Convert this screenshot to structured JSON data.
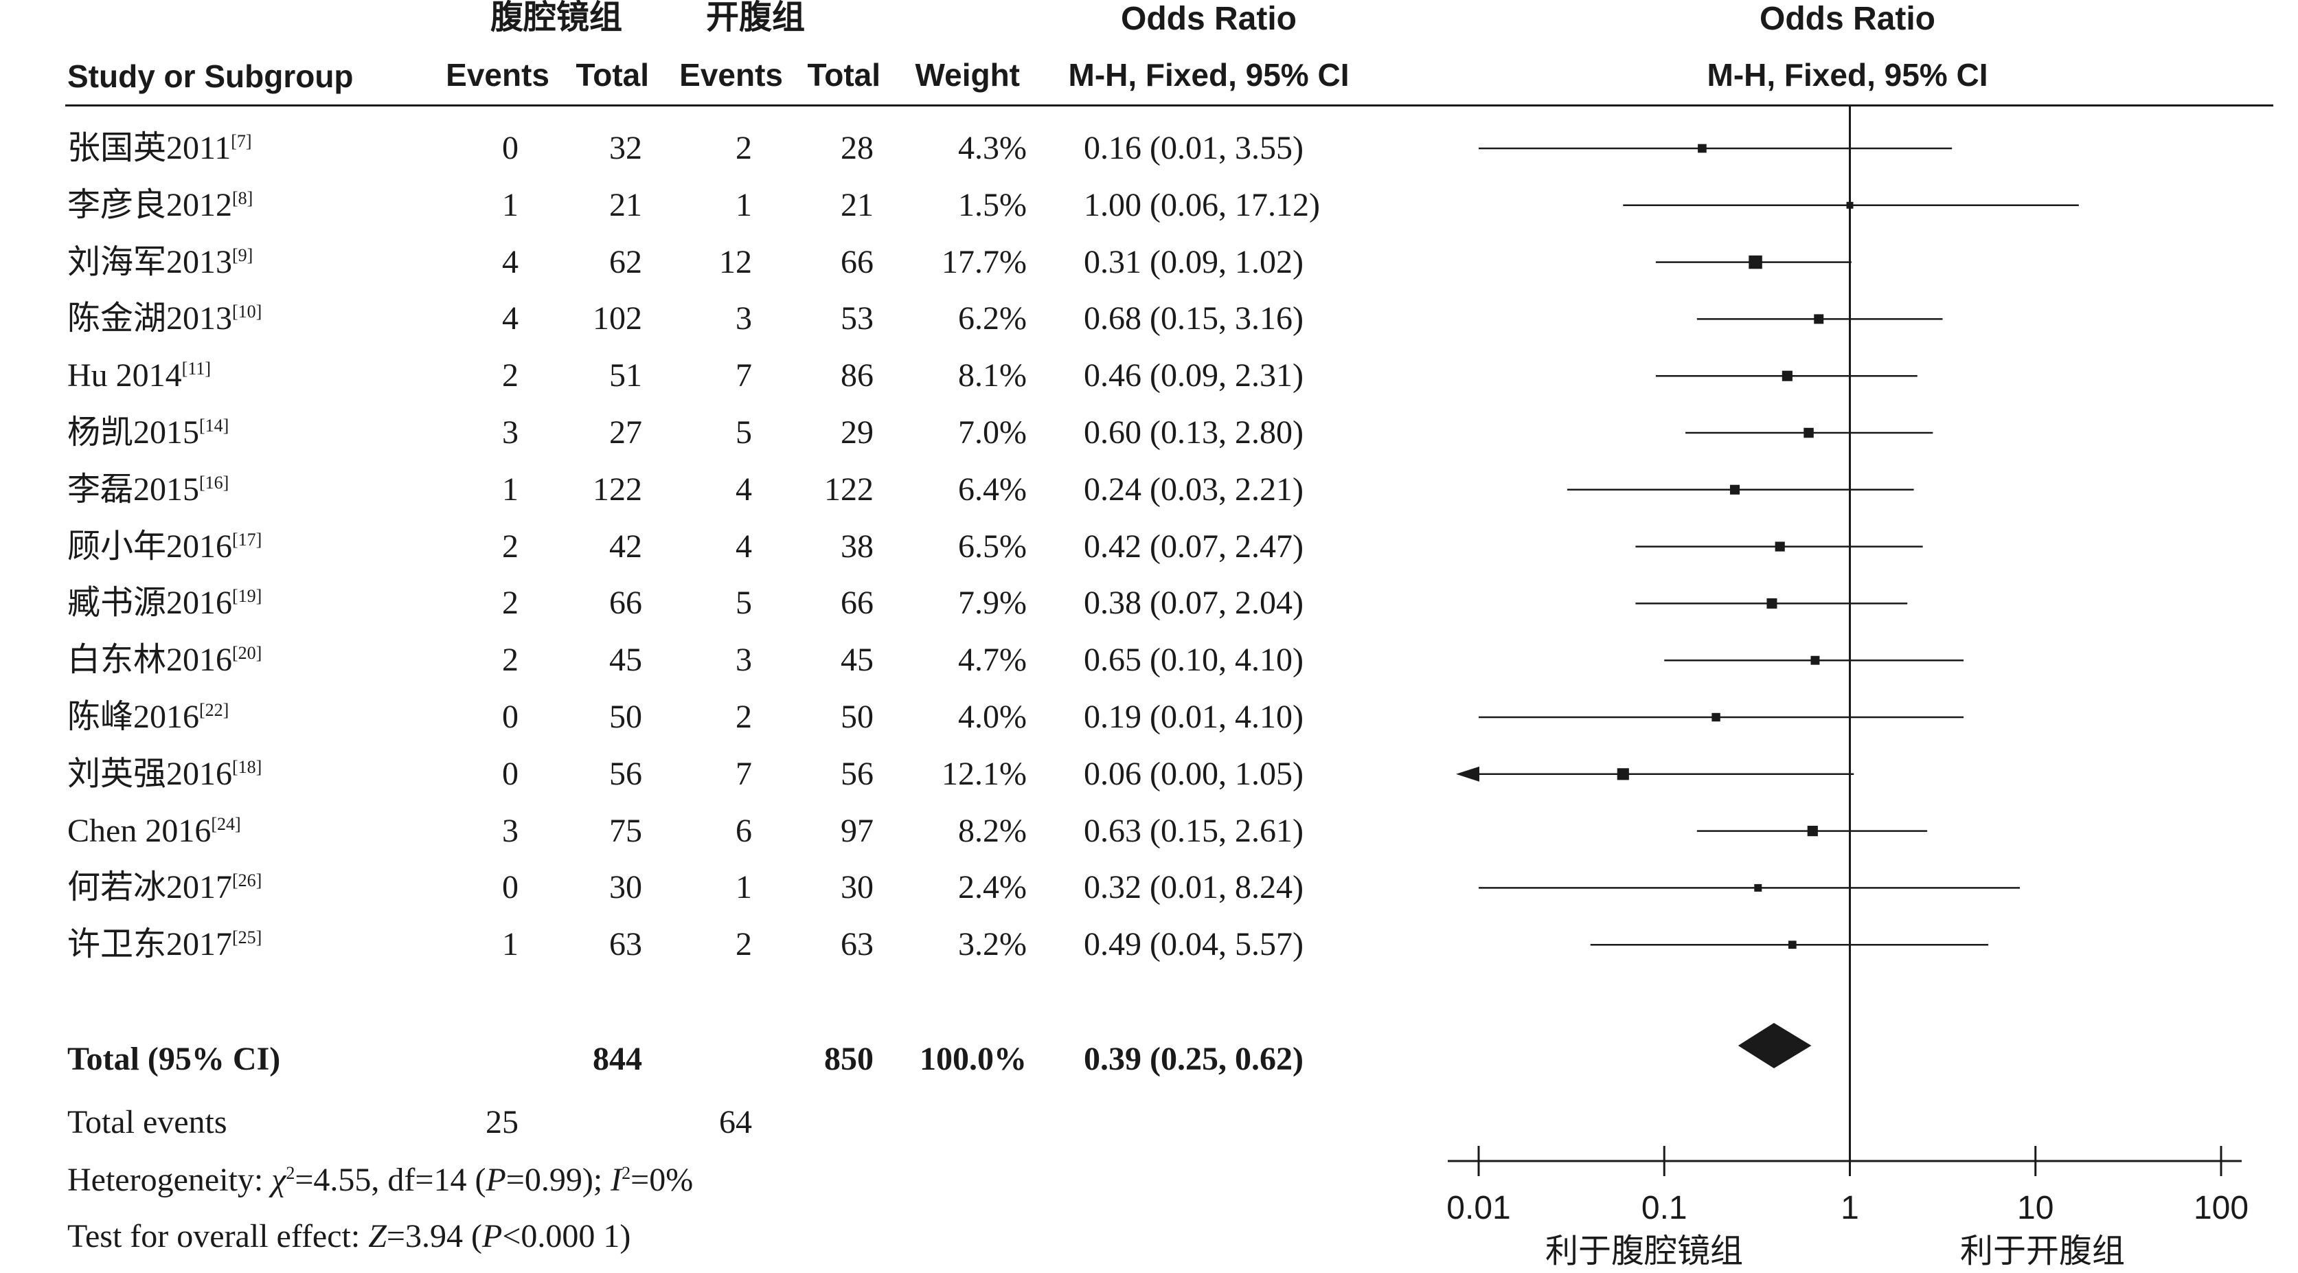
{
  "header": {
    "group_lap": "腹腔镜组",
    "group_open": "开腹组",
    "study_col": "Study or Subgroup",
    "events_lap": "Events",
    "total_lap": "Total",
    "events_open": "Events",
    "total_open": "Total",
    "weight": "Weight",
    "or_title_table": "Odds Ratio",
    "or_method_table": "M-H, Fixed, 95% CI",
    "or_title_plot": "Odds Ratio",
    "or_method_plot": "M-H, Fixed, 95% CI"
  },
  "studies": [
    {
      "name": "张国英2011",
      "ref": "[7]",
      "ev1": "0",
      "tot1": "32",
      "ev2": "2",
      "tot2": "28",
      "weight": "4.3%",
      "ci": "0.16 (0.01, 3.55)"
    },
    {
      "name": "李彦良2012",
      "ref": "[8]",
      "ev1": "1",
      "tot1": "21",
      "ev2": "1",
      "tot2": "21",
      "weight": "1.5%",
      "ci": "1.00 (0.06, 17.12)"
    },
    {
      "name": "刘海军2013",
      "ref": "[9]",
      "ev1": "4",
      "tot1": "62",
      "ev2": "12",
      "tot2": "66",
      "weight": "17.7%",
      "ci": "0.31 (0.09, 1.02)"
    },
    {
      "name": "陈金湖2013",
      "ref": "[10]",
      "ev1": "4",
      "tot1": "102",
      "ev2": "3",
      "tot2": "53",
      "weight": "6.2%",
      "ci": "0.68 (0.15, 3.16)"
    },
    {
      "name": "Hu 2014",
      "ref": "[11]",
      "ev1": "2",
      "tot1": "51",
      "ev2": "7",
      "tot2": "86",
      "weight": "8.1%",
      "ci": "0.46 (0.09, 2.31)"
    },
    {
      "name": "杨凯2015",
      "ref": "[14]",
      "ev1": "3",
      "tot1": "27",
      "ev2": "5",
      "tot2": "29",
      "weight": "7.0%",
      "ci": "0.60 (0.13, 2.80)"
    },
    {
      "name": "李磊2015",
      "ref": "[16]",
      "ev1": "1",
      "tot1": "122",
      "ev2": "4",
      "tot2": "122",
      "weight": "6.4%",
      "ci": "0.24 (0.03, 2.21)"
    },
    {
      "name": "顾小年2016",
      "ref": "[17]",
      "ev1": "2",
      "tot1": "42",
      "ev2": "4",
      "tot2": "38",
      "weight": "6.5%",
      "ci": "0.42 (0.07, 2.47)"
    },
    {
      "name": "臧书源2016",
      "ref": "[19]",
      "ev1": "2",
      "tot1": "66",
      "ev2": "5",
      "tot2": "66",
      "weight": "7.9%",
      "ci": "0.38 (0.07, 2.04)"
    },
    {
      "name": "白东林2016",
      "ref": "[20]",
      "ev1": "2",
      "tot1": "45",
      "ev2": "3",
      "tot2": "45",
      "weight": "4.7%",
      "ci": "0.65 (0.10, 4.10)"
    },
    {
      "name": "陈峰2016",
      "ref": "[22]",
      "ev1": "0",
      "tot1": "50",
      "ev2": "2",
      "tot2": "50",
      "weight": "4.0%",
      "ci": "0.19 (0.01, 4.10)"
    },
    {
      "name": "刘英强2016",
      "ref": "[18]",
      "ev1": "0",
      "tot1": "56",
      "ev2": "7",
      "tot2": "56",
      "weight": "12.1%",
      "ci": "0.06 (0.00, 1.05)"
    },
    {
      "name": "Chen 2016",
      "ref": "[24]",
      "ev1": "3",
      "tot1": "75",
      "ev2": "6",
      "tot2": "97",
      "weight": "8.2%",
      "ci": "0.63 (0.15, 2.61)"
    },
    {
      "name": "何若冰2017",
      "ref": "[26]",
      "ev1": "0",
      "tot1": "30",
      "ev2": "1",
      "tot2": "30",
      "weight": "2.4%",
      "ci": "0.32 (0.01, 8.24)"
    },
    {
      "name": "许卫东2017",
      "ref": "[25]",
      "ev1": "1",
      "tot1": "63",
      "ev2": "2",
      "tot2": "63",
      "weight": "3.2%",
      "ci": "0.49 (0.04, 5.57)"
    }
  ],
  "total": {
    "label": "Total (95% CI)",
    "tot1": "844",
    "tot2": "850",
    "weight": "100.0%",
    "ci": "0.39 (0.25, 0.62)"
  },
  "total_events": {
    "label": "Total events",
    "ev1": "25",
    "ev2": "64"
  },
  "heterogeneity": {
    "prefix": "Heterogeneity: ",
    "chi": "χ",
    "chi_sup": "2",
    "chi_value": "=4.55, df=14 (",
    "p": "P",
    "p_value": "=0.99); ",
    "i": "I",
    "i_sup": "2",
    "i_value": "=0%"
  },
  "overall_effect": {
    "prefix": "Test for overall effect: ",
    "z": "Z",
    "z_value": "=3.94 (",
    "p": "P",
    "p_value": "<0.000 1)"
  },
  "axis": {
    "ticks": [
      "0.01",
      "0.1",
      "1",
      "10",
      "100"
    ],
    "favours_left": "利于腹腔镜组",
    "favours_right": "利于开腹组"
  },
  "chart_data": {
    "type": "forest",
    "x_scale": "log",
    "xlim": [
      0.01,
      100
    ],
    "reference_line": 1,
    "studies": [
      {
        "name": "张国英2011",
        "or": 0.16,
        "lo": 0.01,
        "hi": 3.55,
        "weight": 4.3
      },
      {
        "name": "李彦良2012",
        "or": 1.0,
        "lo": 0.06,
        "hi": 17.12,
        "weight": 1.5
      },
      {
        "name": "刘海军2013",
        "or": 0.31,
        "lo": 0.09,
        "hi": 1.02,
        "weight": 17.7
      },
      {
        "name": "陈金湖2013",
        "or": 0.68,
        "lo": 0.15,
        "hi": 3.16,
        "weight": 6.2
      },
      {
        "name": "Hu 2014",
        "or": 0.46,
        "lo": 0.09,
        "hi": 2.31,
        "weight": 8.1
      },
      {
        "name": "杨凯2015",
        "or": 0.6,
        "lo": 0.13,
        "hi": 2.8,
        "weight": 7.0
      },
      {
        "name": "李磊2015",
        "or": 0.24,
        "lo": 0.03,
        "hi": 2.21,
        "weight": 6.4
      },
      {
        "name": "顾小年2016",
        "or": 0.42,
        "lo": 0.07,
        "hi": 2.47,
        "weight": 6.5
      },
      {
        "name": "臧书源2016",
        "or": 0.38,
        "lo": 0.07,
        "hi": 2.04,
        "weight": 7.9
      },
      {
        "name": "白东林2016",
        "or": 0.65,
        "lo": 0.1,
        "hi": 4.1,
        "weight": 4.7
      },
      {
        "name": "陈峰2016",
        "or": 0.19,
        "lo": 0.01,
        "hi": 4.1,
        "weight": 4.0
      },
      {
        "name": "刘英强2016",
        "or": 0.06,
        "lo": 0.0,
        "hi": 1.05,
        "weight": 12.1,
        "arrow_left": true
      },
      {
        "name": "Chen 2016",
        "or": 0.63,
        "lo": 0.15,
        "hi": 2.61,
        "weight": 8.2
      },
      {
        "name": "何若冰2017",
        "or": 0.32,
        "lo": 0.01,
        "hi": 8.24,
        "weight": 2.4
      },
      {
        "name": "许卫东2017",
        "or": 0.49,
        "lo": 0.04,
        "hi": 5.57,
        "weight": 3.2
      }
    ],
    "pooled": {
      "or": 0.39,
      "lo": 0.25,
      "hi": 0.62
    }
  }
}
